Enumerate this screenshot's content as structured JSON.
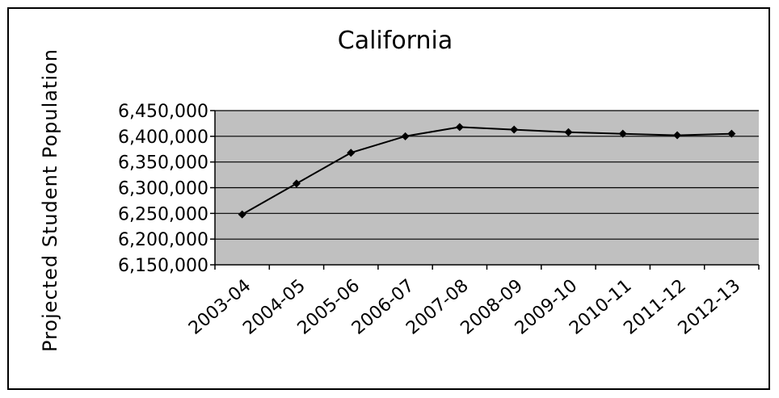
{
  "chart_data": {
    "type": "line",
    "title": "California",
    "xlabel": "",
    "ylabel": "Projected Student Population",
    "categories": [
      "2003-04",
      "2004-05",
      "2005-06",
      "2006-07",
      "2007-08",
      "2008-09",
      "2009-10",
      "2010-11",
      "2011-12",
      "2012-13"
    ],
    "series": [
      {
        "values": [
          6248000,
          6308000,
          6368000,
          6400000,
          6418000,
          6413000,
          6408000,
          6405000,
          6402000,
          6405000
        ]
      }
    ],
    "ylim": [
      6150000,
      6450000
    ],
    "yticks": [
      "6,150,000",
      "6,200,000",
      "6,250,000",
      "6,300,000",
      "6,350,000",
      "6,400,000",
      "6,450,000"
    ],
    "grid": true,
    "colors": {
      "plot_background": "#c0c0c0",
      "line": "#000000",
      "marker": "#000000"
    }
  }
}
